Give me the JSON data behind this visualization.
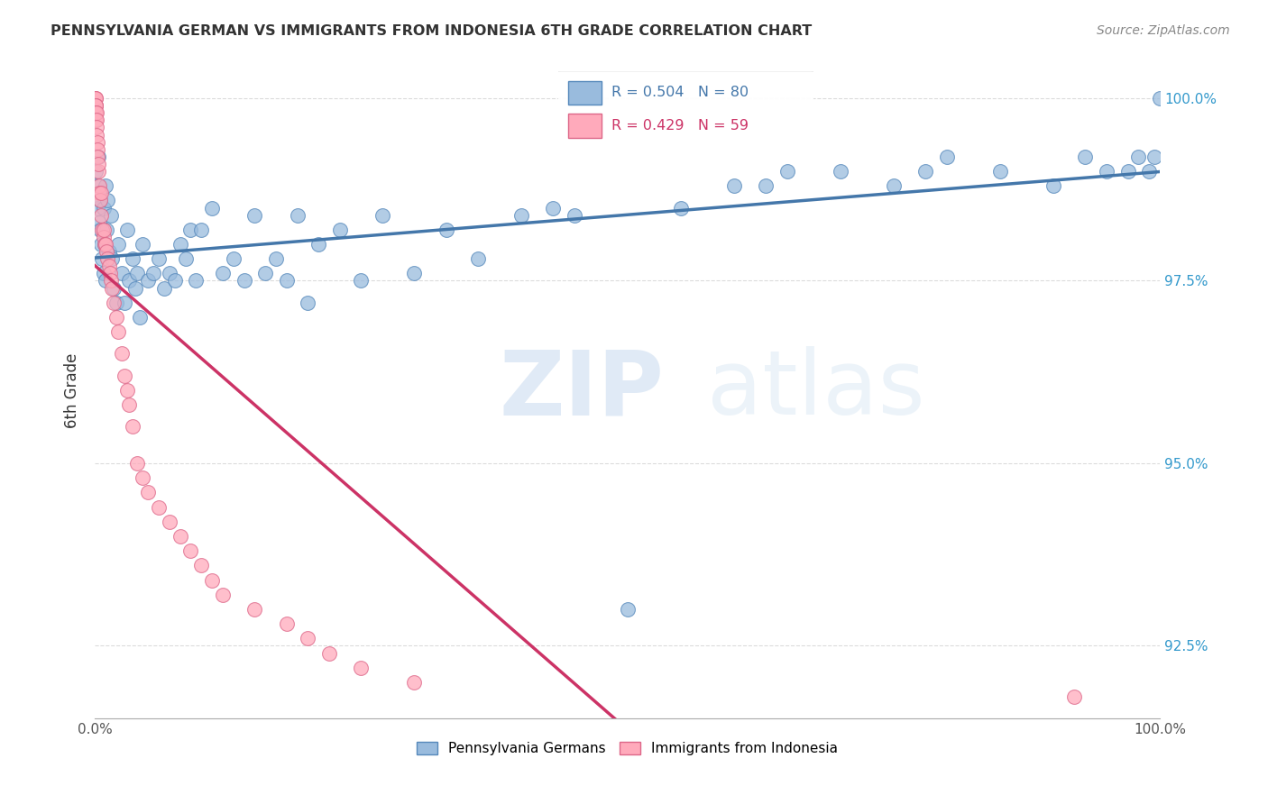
{
  "title": "PENNSYLVANIA GERMAN VS IMMIGRANTS FROM INDONESIA 6TH GRADE CORRELATION CHART",
  "source": "Source: ZipAtlas.com",
  "ylabel": "6th Grade",
  "watermark_zip": "ZIP",
  "watermark_atlas": "atlas",
  "xlim": [
    0.0,
    1.0
  ],
  "ylim": [
    0.915,
    1.005
  ],
  "xticks": [
    0.0,
    0.1,
    0.2,
    0.3,
    0.4,
    0.5,
    0.6,
    0.7,
    0.8,
    0.9,
    1.0
  ],
  "yticks": [
    0.925,
    0.95,
    0.975,
    1.0
  ],
  "yticklabels_right": [
    "92.5%",
    "95.0%",
    "97.5%",
    "100.0%"
  ],
  "blue_R": 0.504,
  "blue_N": 80,
  "pink_R": 0.429,
  "pink_N": 59,
  "blue_color": "#99BBDD",
  "pink_color": "#FFAABB",
  "blue_edge_color": "#5588BB",
  "pink_edge_color": "#DD6688",
  "blue_line_color": "#4477AA",
  "pink_line_color": "#CC3366",
  "legend_label_blue": "Pennsylvania Germans",
  "legend_label_pink": "Immigrants from Indonesia",
  "blue_x": [
    0.001,
    0.002,
    0.003,
    0.003,
    0.004,
    0.005,
    0.005,
    0.006,
    0.007,
    0.008,
    0.008,
    0.009,
    0.01,
    0.01,
    0.011,
    0.012,
    0.013,
    0.015,
    0.016,
    0.018,
    0.02,
    0.022,
    0.025,
    0.028,
    0.03,
    0.032,
    0.035,
    0.038,
    0.04,
    0.042,
    0.045,
    0.05,
    0.055,
    0.06,
    0.065,
    0.07,
    0.075,
    0.08,
    0.085,
    0.09,
    0.095,
    0.1,
    0.11,
    0.12,
    0.13,
    0.14,
    0.15,
    0.16,
    0.17,
    0.18,
    0.19,
    0.2,
    0.21,
    0.23,
    0.25,
    0.27,
    0.3,
    0.33,
    0.36,
    0.4,
    0.43,
    0.45,
    0.5,
    0.55,
    0.6,
    0.63,
    0.65,
    0.7,
    0.75,
    0.78,
    0.8,
    0.85,
    0.9,
    0.93,
    0.95,
    0.97,
    0.98,
    0.99,
    0.995,
    1.0
  ],
  "blue_y": [
    0.99,
    0.985,
    0.992,
    0.988,
    0.983,
    0.986,
    0.982,
    0.98,
    0.978,
    0.976,
    0.985,
    0.98,
    0.975,
    0.988,
    0.982,
    0.986,
    0.979,
    0.984,
    0.978,
    0.974,
    0.972,
    0.98,
    0.976,
    0.972,
    0.982,
    0.975,
    0.978,
    0.974,
    0.976,
    0.97,
    0.98,
    0.975,
    0.976,
    0.978,
    0.974,
    0.976,
    0.975,
    0.98,
    0.978,
    0.982,
    0.975,
    0.982,
    0.985,
    0.976,
    0.978,
    0.975,
    0.984,
    0.976,
    0.978,
    0.975,
    0.984,
    0.972,
    0.98,
    0.982,
    0.975,
    0.984,
    0.976,
    0.982,
    0.978,
    0.984,
    0.985,
    0.984,
    0.93,
    0.985,
    0.988,
    0.988,
    0.99,
    0.99,
    0.988,
    0.99,
    0.992,
    0.99,
    0.988,
    0.992,
    0.99,
    0.99,
    0.992,
    0.99,
    0.992,
    1.0
  ],
  "pink_x": [
    0.0002,
    0.0003,
    0.0004,
    0.0005,
    0.0006,
    0.0007,
    0.0008,
    0.0009,
    0.001,
    0.0012,
    0.0014,
    0.0016,
    0.0018,
    0.002,
    0.0022,
    0.0025,
    0.003,
    0.0032,
    0.004,
    0.0042,
    0.005,
    0.0055,
    0.006,
    0.007,
    0.008,
    0.0085,
    0.009,
    0.01,
    0.011,
    0.012,
    0.013,
    0.014,
    0.015,
    0.016,
    0.018,
    0.02,
    0.022,
    0.025,
    0.028,
    0.03,
    0.032,
    0.035,
    0.04,
    0.045,
    0.05,
    0.06,
    0.07,
    0.08,
    0.09,
    0.1,
    0.11,
    0.12,
    0.15,
    0.18,
    0.2,
    0.22,
    0.25,
    0.3,
    0.92
  ],
  "pink_y": [
    1.0,
    1.0,
    0.999,
    1.0,
    0.999,
    0.998,
    0.999,
    0.998,
    0.997,
    0.998,
    0.997,
    0.996,
    0.995,
    0.994,
    0.993,
    0.992,
    0.99,
    0.991,
    0.988,
    0.987,
    0.986,
    0.987,
    0.984,
    0.982,
    0.981,
    0.982,
    0.98,
    0.98,
    0.979,
    0.978,
    0.977,
    0.976,
    0.975,
    0.974,
    0.972,
    0.97,
    0.968,
    0.965,
    0.962,
    0.96,
    0.958,
    0.955,
    0.95,
    0.948,
    0.946,
    0.944,
    0.942,
    0.94,
    0.938,
    0.936,
    0.934,
    0.932,
    0.93,
    0.928,
    0.926,
    0.924,
    0.922,
    0.92,
    0.918
  ]
}
